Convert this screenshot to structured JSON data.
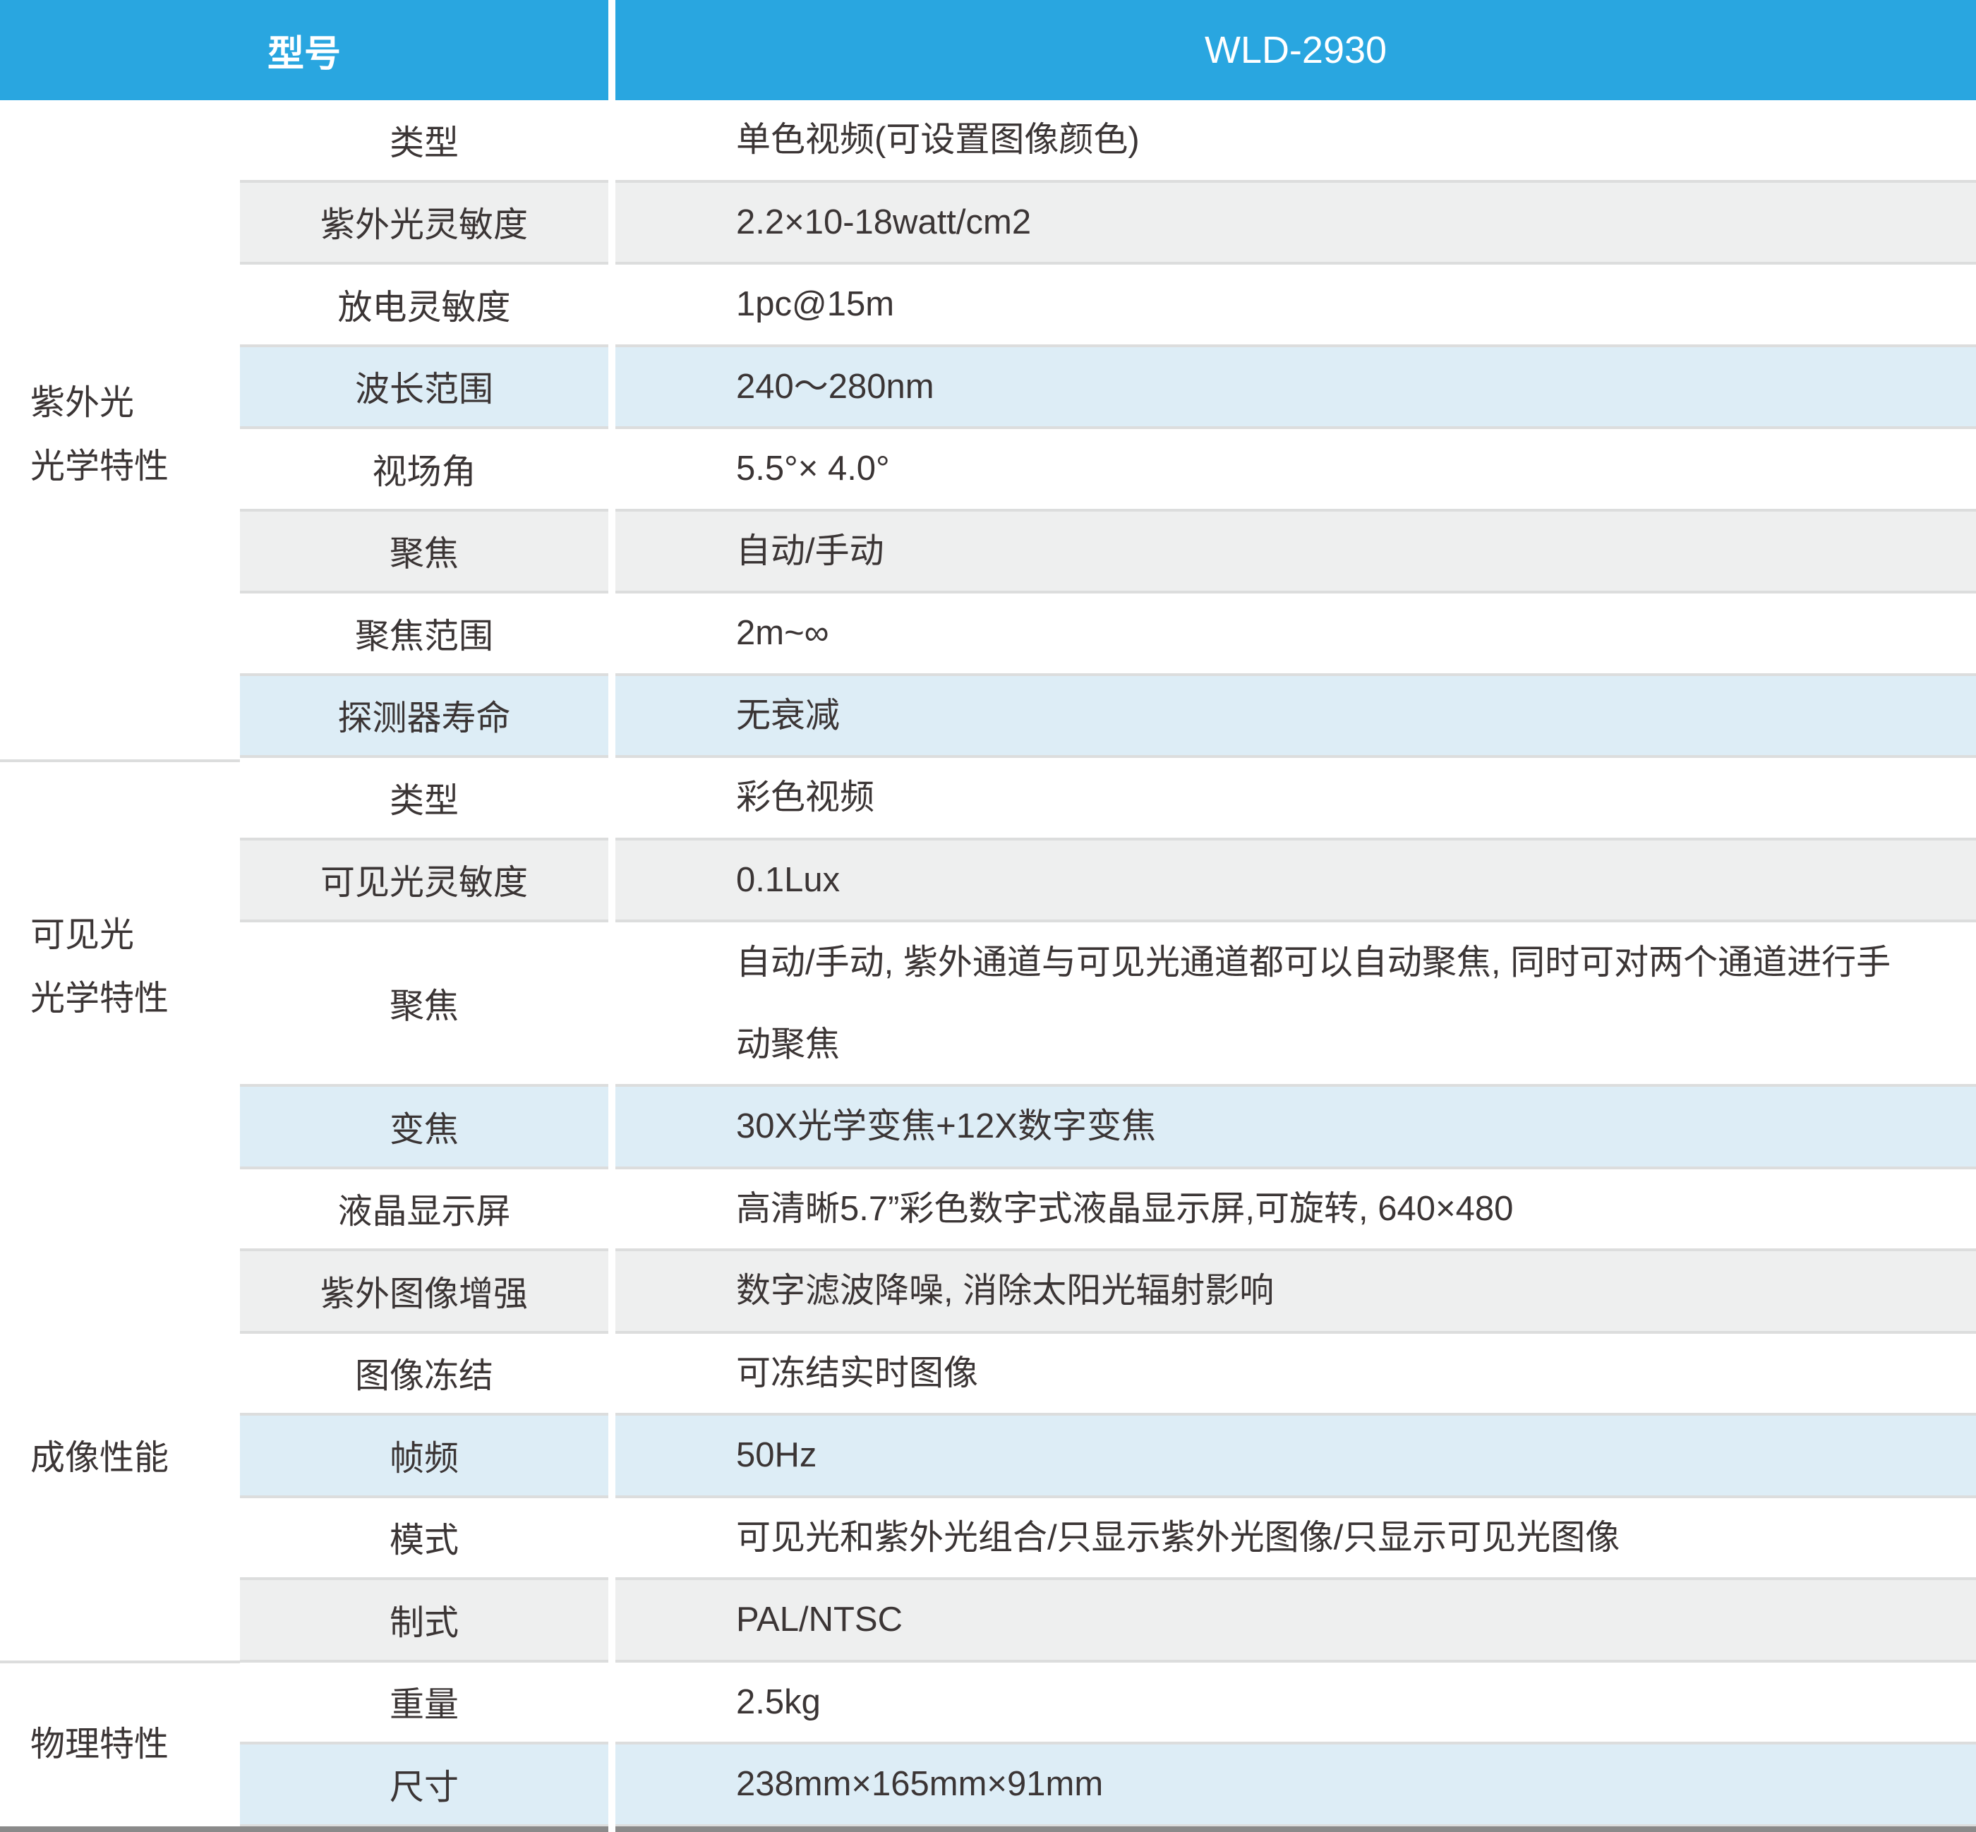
{
  "header": {
    "model_label": "型号",
    "model_value": "WLD-2930"
  },
  "colors": {
    "header": "#29a6e0",
    "gray_row": "#eeefef",
    "blue_row": "#ddedf6",
    "text": "#3b3535"
  },
  "groups": [
    {
      "lines": [
        "紫外光",
        "光学特性"
      ]
    },
    {
      "lines": [
        "可见光",
        "光学特性"
      ]
    },
    {
      "lines": [
        "成像性能"
      ]
    },
    {
      "lines": [
        "物理特性"
      ]
    }
  ],
  "rows": [
    {
      "label": "类型",
      "value": "单色视频(可设置图像颜色)",
      "style": "white"
    },
    {
      "label": "紫外光灵敏度",
      "value": "2.2×10-18watt/cm2",
      "style": "gray"
    },
    {
      "label": "放电灵敏度",
      "value": "1pc@15m",
      "style": "white"
    },
    {
      "label": "波长范围",
      "value": "240～280nm",
      "style": "blue"
    },
    {
      "label": "视场角",
      "value": "5.5°× 4.0°",
      "style": "white"
    },
    {
      "label": "聚焦",
      "value": "自动/手动",
      "style": "gray"
    },
    {
      "label": "聚焦范围",
      "value": "2m~∞",
      "style": "white"
    },
    {
      "label": "探测器寿命",
      "value": "无衰减",
      "style": "blue"
    },
    {
      "label": "类型",
      "value": "彩色视频",
      "style": "white"
    },
    {
      "label": "可见光灵敏度",
      "value": "0.1Lux",
      "style": "gray"
    },
    {
      "label": "聚焦",
      "value": "自动/手动, 紫外通道与可见光通道都可以自动聚焦, 同时可对两个通道进行手动聚焦",
      "style": "white"
    },
    {
      "label": "变焦",
      "value": "30X光学变焦+12X数字变焦",
      "style": "blue"
    },
    {
      "label": "液晶显示屏",
      "value": "高清晰5.7”彩色数字式液晶显示屏,可旋转, 640×480",
      "style": "white"
    },
    {
      "label": "紫外图像增强",
      "value": "数字滤波降噪, 消除太阳光辐射影响",
      "style": "gray"
    },
    {
      "label": "图像冻结",
      "value": "可冻结实时图像",
      "style": "white"
    },
    {
      "label": "帧频",
      "value": "50Hz",
      "style": "blue"
    },
    {
      "label": "模式",
      "value": "可见光和紫外光组合/只显示紫外光图像/只显示可见光图像",
      "style": "white"
    },
    {
      "label": "制式",
      "value": "PAL/NTSC",
      "style": "gray"
    },
    {
      "label": "重量",
      "value": "2.5kg",
      "style": "white"
    },
    {
      "label": "尺寸",
      "value": "238mm×165mm×91mm",
      "style": "blue"
    }
  ]
}
